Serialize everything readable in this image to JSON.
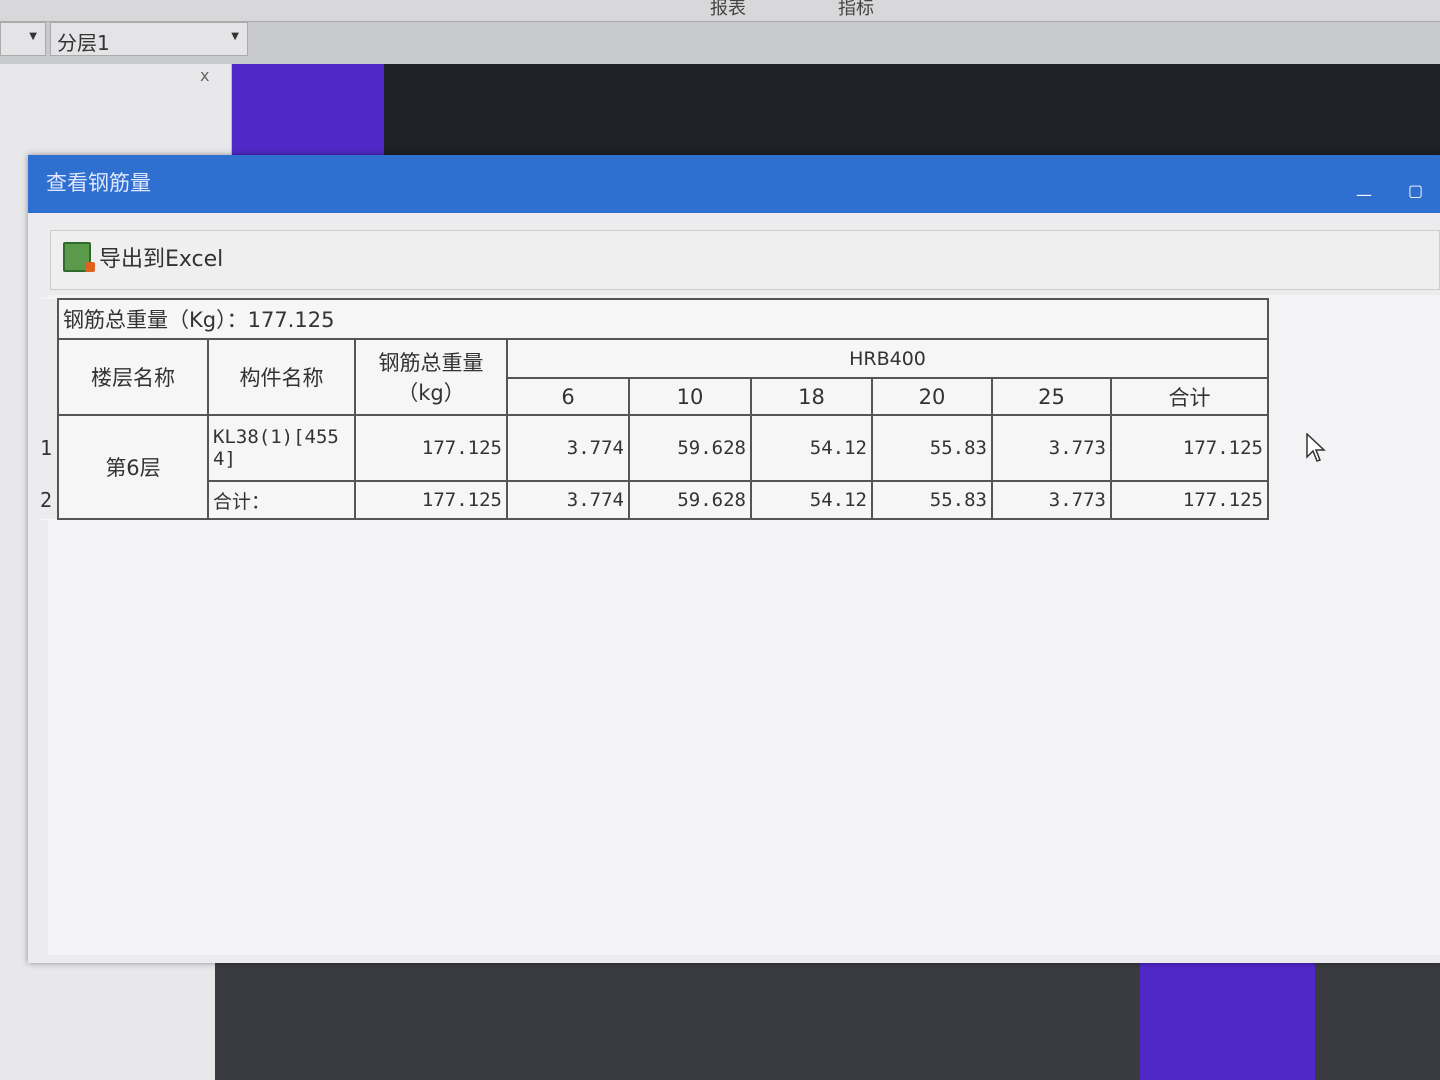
{
  "app": {
    "top_tabs": [
      "报表",
      "指标"
    ],
    "layer_dropdown": "分层1",
    "close_glyph": "x"
  },
  "dialog": {
    "title": "查看钢筋量",
    "export_label": "导出到Excel",
    "summary": "钢筋总重量（Kg）：177.125",
    "headers": {
      "floor": "楼层名称",
      "component": "构件名称",
      "total": "钢筋总重量",
      "total_unit": "（kg）",
      "grade": "HRB400",
      "diameters": [
        "6",
        "10",
        "18",
        "20",
        "25"
      ],
      "sum": "合计"
    },
    "rows": [
      {
        "index": "1",
        "floor": "第6层",
        "component": "KL38(1)[4554]",
        "total": "177.125",
        "values": [
          "3.774",
          "59.628",
          "54.12",
          "55.83",
          "3.773"
        ],
        "sum": "177.125"
      },
      {
        "index": "2",
        "component": "合计：",
        "total": "177.125",
        "values": [
          "3.774",
          "59.628",
          "54.12",
          "55.83",
          "3.773"
        ],
        "sum": "177.125"
      }
    ]
  }
}
